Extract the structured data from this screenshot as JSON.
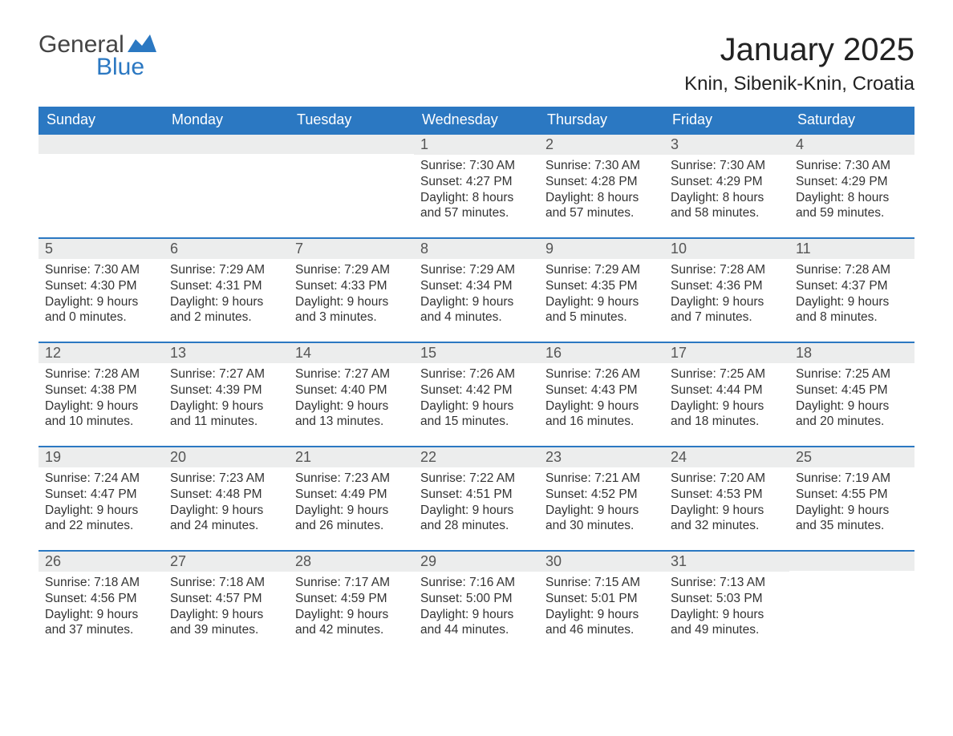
{
  "logo": {
    "top": "General",
    "bottom": "Blue"
  },
  "title": "January 2025",
  "location": "Knin, Sibenik-Knin, Croatia",
  "colors": {
    "header_bg": "#2b78c2",
    "strip_bg": "#eceded",
    "border": "#2b78c2",
    "text": "#333333"
  },
  "daysOfWeek": [
    "Sunday",
    "Monday",
    "Tuesday",
    "Wednesday",
    "Thursday",
    "Friday",
    "Saturday"
  ],
  "weeks": [
    [
      {
        "empty": true
      },
      {
        "empty": true
      },
      {
        "empty": true
      },
      {
        "num": "1",
        "sunrise": "Sunrise: 7:30 AM",
        "sunset": "Sunset: 4:27 PM",
        "dl1": "Daylight: 8 hours",
        "dl2": "and 57 minutes."
      },
      {
        "num": "2",
        "sunrise": "Sunrise: 7:30 AM",
        "sunset": "Sunset: 4:28 PM",
        "dl1": "Daylight: 8 hours",
        "dl2": "and 57 minutes."
      },
      {
        "num": "3",
        "sunrise": "Sunrise: 7:30 AM",
        "sunset": "Sunset: 4:29 PM",
        "dl1": "Daylight: 8 hours",
        "dl2": "and 58 minutes."
      },
      {
        "num": "4",
        "sunrise": "Sunrise: 7:30 AM",
        "sunset": "Sunset: 4:29 PM",
        "dl1": "Daylight: 8 hours",
        "dl2": "and 59 minutes."
      }
    ],
    [
      {
        "num": "5",
        "sunrise": "Sunrise: 7:30 AM",
        "sunset": "Sunset: 4:30 PM",
        "dl1": "Daylight: 9 hours",
        "dl2": "and 0 minutes."
      },
      {
        "num": "6",
        "sunrise": "Sunrise: 7:29 AM",
        "sunset": "Sunset: 4:31 PM",
        "dl1": "Daylight: 9 hours",
        "dl2": "and 2 minutes."
      },
      {
        "num": "7",
        "sunrise": "Sunrise: 7:29 AM",
        "sunset": "Sunset: 4:33 PM",
        "dl1": "Daylight: 9 hours",
        "dl2": "and 3 minutes."
      },
      {
        "num": "8",
        "sunrise": "Sunrise: 7:29 AM",
        "sunset": "Sunset: 4:34 PM",
        "dl1": "Daylight: 9 hours",
        "dl2": "and 4 minutes."
      },
      {
        "num": "9",
        "sunrise": "Sunrise: 7:29 AM",
        "sunset": "Sunset: 4:35 PM",
        "dl1": "Daylight: 9 hours",
        "dl2": "and 5 minutes."
      },
      {
        "num": "10",
        "sunrise": "Sunrise: 7:28 AM",
        "sunset": "Sunset: 4:36 PM",
        "dl1": "Daylight: 9 hours",
        "dl2": "and 7 minutes."
      },
      {
        "num": "11",
        "sunrise": "Sunrise: 7:28 AM",
        "sunset": "Sunset: 4:37 PM",
        "dl1": "Daylight: 9 hours",
        "dl2": "and 8 minutes."
      }
    ],
    [
      {
        "num": "12",
        "sunrise": "Sunrise: 7:28 AM",
        "sunset": "Sunset: 4:38 PM",
        "dl1": "Daylight: 9 hours",
        "dl2": "and 10 minutes."
      },
      {
        "num": "13",
        "sunrise": "Sunrise: 7:27 AM",
        "sunset": "Sunset: 4:39 PM",
        "dl1": "Daylight: 9 hours",
        "dl2": "and 11 minutes."
      },
      {
        "num": "14",
        "sunrise": "Sunrise: 7:27 AM",
        "sunset": "Sunset: 4:40 PM",
        "dl1": "Daylight: 9 hours",
        "dl2": "and 13 minutes."
      },
      {
        "num": "15",
        "sunrise": "Sunrise: 7:26 AM",
        "sunset": "Sunset: 4:42 PM",
        "dl1": "Daylight: 9 hours",
        "dl2": "and 15 minutes."
      },
      {
        "num": "16",
        "sunrise": "Sunrise: 7:26 AM",
        "sunset": "Sunset: 4:43 PM",
        "dl1": "Daylight: 9 hours",
        "dl2": "and 16 minutes."
      },
      {
        "num": "17",
        "sunrise": "Sunrise: 7:25 AM",
        "sunset": "Sunset: 4:44 PM",
        "dl1": "Daylight: 9 hours",
        "dl2": "and 18 minutes."
      },
      {
        "num": "18",
        "sunrise": "Sunrise: 7:25 AM",
        "sunset": "Sunset: 4:45 PM",
        "dl1": "Daylight: 9 hours",
        "dl2": "and 20 minutes."
      }
    ],
    [
      {
        "num": "19",
        "sunrise": "Sunrise: 7:24 AM",
        "sunset": "Sunset: 4:47 PM",
        "dl1": "Daylight: 9 hours",
        "dl2": "and 22 minutes."
      },
      {
        "num": "20",
        "sunrise": "Sunrise: 7:23 AM",
        "sunset": "Sunset: 4:48 PM",
        "dl1": "Daylight: 9 hours",
        "dl2": "and 24 minutes."
      },
      {
        "num": "21",
        "sunrise": "Sunrise: 7:23 AM",
        "sunset": "Sunset: 4:49 PM",
        "dl1": "Daylight: 9 hours",
        "dl2": "and 26 minutes."
      },
      {
        "num": "22",
        "sunrise": "Sunrise: 7:22 AM",
        "sunset": "Sunset: 4:51 PM",
        "dl1": "Daylight: 9 hours",
        "dl2": "and 28 minutes."
      },
      {
        "num": "23",
        "sunrise": "Sunrise: 7:21 AM",
        "sunset": "Sunset: 4:52 PM",
        "dl1": "Daylight: 9 hours",
        "dl2": "and 30 minutes."
      },
      {
        "num": "24",
        "sunrise": "Sunrise: 7:20 AM",
        "sunset": "Sunset: 4:53 PM",
        "dl1": "Daylight: 9 hours",
        "dl2": "and 32 minutes."
      },
      {
        "num": "25",
        "sunrise": "Sunrise: 7:19 AM",
        "sunset": "Sunset: 4:55 PM",
        "dl1": "Daylight: 9 hours",
        "dl2": "and 35 minutes."
      }
    ],
    [
      {
        "num": "26",
        "sunrise": "Sunrise: 7:18 AM",
        "sunset": "Sunset: 4:56 PM",
        "dl1": "Daylight: 9 hours",
        "dl2": "and 37 minutes."
      },
      {
        "num": "27",
        "sunrise": "Sunrise: 7:18 AM",
        "sunset": "Sunset: 4:57 PM",
        "dl1": "Daylight: 9 hours",
        "dl2": "and 39 minutes."
      },
      {
        "num": "28",
        "sunrise": "Sunrise: 7:17 AM",
        "sunset": "Sunset: 4:59 PM",
        "dl1": "Daylight: 9 hours",
        "dl2": "and 42 minutes."
      },
      {
        "num": "29",
        "sunrise": "Sunrise: 7:16 AM",
        "sunset": "Sunset: 5:00 PM",
        "dl1": "Daylight: 9 hours",
        "dl2": "and 44 minutes."
      },
      {
        "num": "30",
        "sunrise": "Sunrise: 7:15 AM",
        "sunset": "Sunset: 5:01 PM",
        "dl1": "Daylight: 9 hours",
        "dl2": "and 46 minutes."
      },
      {
        "num": "31",
        "sunrise": "Sunrise: 7:13 AM",
        "sunset": "Sunset: 5:03 PM",
        "dl1": "Daylight: 9 hours",
        "dl2": "and 49 minutes."
      },
      {
        "empty": true
      }
    ]
  ]
}
